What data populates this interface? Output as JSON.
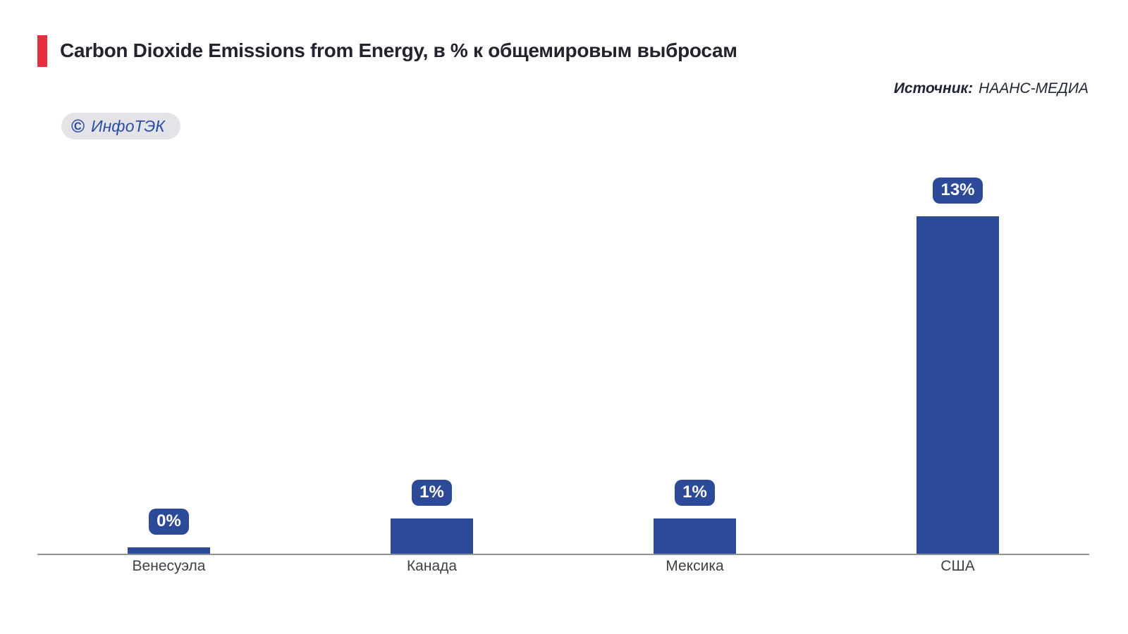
{
  "header": {
    "title": "Carbon Dioxide Emissions from Energy, в % к общемировым выбросам",
    "accent_color": "#e62e3c"
  },
  "source": {
    "label": "Источник:",
    "value": "НААНС-МЕДИА"
  },
  "brand": {
    "symbol": "©",
    "name": "ИнфоТЭК"
  },
  "chart_data": {
    "type": "bar",
    "title": "Carbon Dioxide Emissions from Energy, в % к общемировым выбросам",
    "categories": [
      "Венесуэла",
      "Канада",
      "Мексика",
      "США"
    ],
    "values": [
      0.3,
      1.4,
      1.4,
      13
    ],
    "labels": [
      "0%",
      "1%",
      "1%",
      "13%"
    ],
    "xlabel": "",
    "ylabel": "",
    "ylim": [
      0,
      14
    ],
    "grid": false,
    "legend": false,
    "bar_color": "#2d4a98",
    "badge_color": "#2d4a98",
    "badge_text_color": "#ffffff",
    "axis_line_color": "#929292"
  }
}
